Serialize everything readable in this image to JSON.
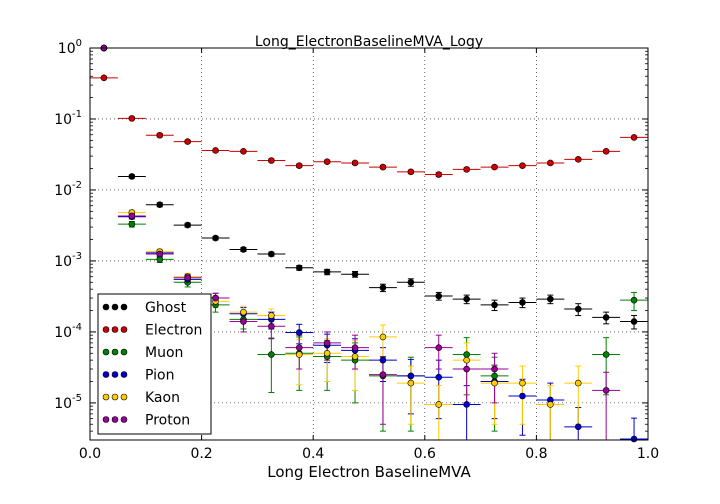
{
  "chart_data": {
    "type": "scatter",
    "title": "Long_ElectronBaselineMVA_Logy",
    "xlabel": "Long Electron BaselineMVA",
    "ylabel": "",
    "xlim": [
      0.0,
      1.0
    ],
    "ylim": [
      3e-06,
      1.0
    ],
    "yscale": "log",
    "grid": true,
    "legend_position": "lower-left",
    "bin_width": 0.05,
    "x_ticks": [
      "0.0",
      "0.2",
      "0.4",
      "0.6",
      "0.8",
      "1.0"
    ],
    "y_ticks": [
      {
        "base": "10",
        "exp": "-5",
        "value": 1e-05
      },
      {
        "base": "10",
        "exp": "-4",
        "value": 0.0001
      },
      {
        "base": "10",
        "exp": "-3",
        "value": 0.001
      },
      {
        "base": "10",
        "exp": "-2",
        "value": 0.01
      },
      {
        "base": "10",
        "exp": "-1",
        "value": 0.1
      },
      {
        "base": "10",
        "exp": "0",
        "value": 1
      }
    ],
    "series": [
      {
        "name": "Ghost",
        "color": "#000000",
        "points": [
          [
            0.025,
            1.0,
            0.0
          ],
          [
            0.075,
            0.0155,
            0.0008
          ],
          [
            0.125,
            0.0062,
            0.0004
          ],
          [
            0.175,
            0.0032,
            0.0002
          ],
          [
            0.225,
            0.0021,
            0.00012
          ],
          [
            0.275,
            0.00145,
            9e-05
          ],
          [
            0.325,
            0.00125,
            8e-05
          ],
          [
            0.375,
            0.0008,
            6e-05
          ],
          [
            0.425,
            0.0007,
            6e-05
          ],
          [
            0.475,
            0.00065,
            6e-05
          ],
          [
            0.525,
            0.00042,
            5e-05
          ],
          [
            0.575,
            0.0005,
            6e-05
          ],
          [
            0.625,
            0.00032,
            4e-05
          ],
          [
            0.675,
            0.00029,
            4e-05
          ],
          [
            0.725,
            0.00024,
            4e-05
          ],
          [
            0.775,
            0.00026,
            4e-05
          ],
          [
            0.825,
            0.00029,
            4e-05
          ],
          [
            0.875,
            0.00021,
            4e-05
          ],
          [
            0.925,
            0.00016,
            3e-05
          ],
          [
            0.975,
            0.00014,
            3e-05
          ]
        ]
      },
      {
        "name": "Electron",
        "color": "#cc0000",
        "points": [
          [
            0.025,
            0.38,
            0.01
          ],
          [
            0.075,
            0.102,
            0.004
          ],
          [
            0.125,
            0.059,
            0.003
          ],
          [
            0.175,
            0.048,
            0.002
          ],
          [
            0.225,
            0.036,
            0.0015
          ],
          [
            0.275,
            0.035,
            0.0015
          ],
          [
            0.325,
            0.026,
            0.0012
          ],
          [
            0.375,
            0.022,
            0.0012
          ],
          [
            0.425,
            0.025,
            0.0012
          ],
          [
            0.475,
            0.024,
            0.0012
          ],
          [
            0.525,
            0.021,
            0.0011
          ],
          [
            0.575,
            0.018,
            0.001
          ],
          [
            0.625,
            0.0165,
            0.001
          ],
          [
            0.675,
            0.0195,
            0.001
          ],
          [
            0.725,
            0.021,
            0.001
          ],
          [
            0.775,
            0.022,
            0.001
          ],
          [
            0.825,
            0.024,
            0.0012
          ],
          [
            0.875,
            0.027,
            0.0012
          ],
          [
            0.925,
            0.035,
            0.0015
          ],
          [
            0.975,
            0.055,
            0.002
          ]
        ]
      },
      {
        "name": "Muon",
        "color": "#008000",
        "points": [
          [
            0.025,
            1.0,
            0.0
          ],
          [
            0.075,
            0.0033,
            0.0003
          ],
          [
            0.125,
            0.00105,
            0.0001
          ],
          [
            0.175,
            0.0005,
            7e-05
          ],
          [
            0.225,
            0.00024,
            5e-05
          ],
          [
            0.275,
            0.00015,
            4e-05
          ],
          [
            0.325,
            4.8e-05,
            3.4e-05
          ],
          [
            0.375,
            5e-05,
            3.5e-05
          ],
          [
            0.425,
            4.5e-05,
            3e-05
          ],
          [
            0.475,
            4e-05,
            3e-05
          ],
          [
            0.525,
            2.4e-05,
            2e-05
          ],
          [
            0.575,
            2.4e-05,
            2e-05
          ],
          [
            0.675,
            4.8e-05,
            3.5e-05
          ],
          [
            0.725,
            2.4e-05,
            2e-05
          ],
          [
            0.925,
            4.8e-05,
            3.5e-05
          ],
          [
            0.975,
            0.00028,
            8e-05
          ]
        ]
      },
      {
        "name": "Pion",
        "color": "#0000cc",
        "points": [
          [
            0.025,
            1.0,
            0.0
          ],
          [
            0.075,
            0.0042,
            0.0003
          ],
          [
            0.125,
            0.0013,
            0.00012
          ],
          [
            0.175,
            0.00055,
            7e-05
          ],
          [
            0.225,
            0.0003,
            5e-05
          ],
          [
            0.275,
            0.00018,
            4e-05
          ],
          [
            0.325,
            0.00015,
            4e-05
          ],
          [
            0.375,
            9.8e-05,
            3e-05
          ],
          [
            0.425,
            6.5e-05,
            2.8e-05
          ],
          [
            0.475,
            5.5e-05,
            2.5e-05
          ],
          [
            0.525,
            4e-05,
            2e-05
          ],
          [
            0.575,
            2.4e-05,
            1.7e-05
          ],
          [
            0.625,
            2.3e-05,
            1.7e-05
          ],
          [
            0.675,
            9.5e-06,
            8e-06
          ],
          [
            0.725,
            2e-05,
            1.4e-05
          ],
          [
            0.775,
            1.25e-05,
            9e-06
          ],
          [
            0.825,
            1.1e-05,
            8e-06
          ],
          [
            0.875,
            4.6e-06,
            4e-06
          ],
          [
            0.975,
            3.1e-06,
            3e-06
          ]
        ]
      },
      {
        "name": "Kaon",
        "color": "#ffcc00",
        "points": [
          [
            0.025,
            1.0,
            0.0
          ],
          [
            0.075,
            0.0048,
            0.0004
          ],
          [
            0.125,
            0.00135,
            0.00012
          ],
          [
            0.175,
            0.0006,
            7e-05
          ],
          [
            0.225,
            0.00027,
            5e-05
          ],
          [
            0.275,
            0.00019,
            4e-05
          ],
          [
            0.325,
            0.00017,
            4e-05
          ],
          [
            0.375,
            4.8e-05,
            3e-05
          ],
          [
            0.425,
            5e-05,
            3e-05
          ],
          [
            0.475,
            4.5e-05,
            3e-05
          ],
          [
            0.525,
            8.5e-05,
            4e-05
          ],
          [
            0.575,
            1.9e-05,
            1.4e-05
          ],
          [
            0.625,
            9.5e-06,
            8e-06
          ],
          [
            0.675,
            4e-05,
            3e-05
          ],
          [
            0.725,
            1.9e-05,
            1.4e-05
          ],
          [
            0.775,
            1.9e-05,
            1.4e-05
          ],
          [
            0.825,
            9.5e-06,
            8e-06
          ],
          [
            0.875,
            1.9e-05,
            1.4e-05
          ]
        ]
      },
      {
        "name": "Proton",
        "color": "#990099",
        "points": [
          [
            0.025,
            1.0,
            0.0
          ],
          [
            0.075,
            0.0043,
            0.0004
          ],
          [
            0.125,
            0.00125,
            0.00012
          ],
          [
            0.175,
            0.00058,
            7e-05
          ],
          [
            0.225,
            0.0003,
            5e-05
          ],
          [
            0.275,
            0.00014,
            4e-05
          ],
          [
            0.325,
            0.00012,
            4e-05
          ],
          [
            0.375,
            6e-05,
            3e-05
          ],
          [
            0.425,
            7e-05,
            3e-05
          ],
          [
            0.475,
            6e-05,
            3e-05
          ],
          [
            0.525,
            2.5e-05,
            2e-05
          ],
          [
            0.625,
            6e-05,
            3e-05
          ],
          [
            0.675,
            3e-05,
            2e-05
          ],
          [
            0.725,
            3e-05,
            2e-05
          ],
          [
            0.925,
            1.5e-05,
            1.2e-05
          ]
        ]
      }
    ]
  }
}
